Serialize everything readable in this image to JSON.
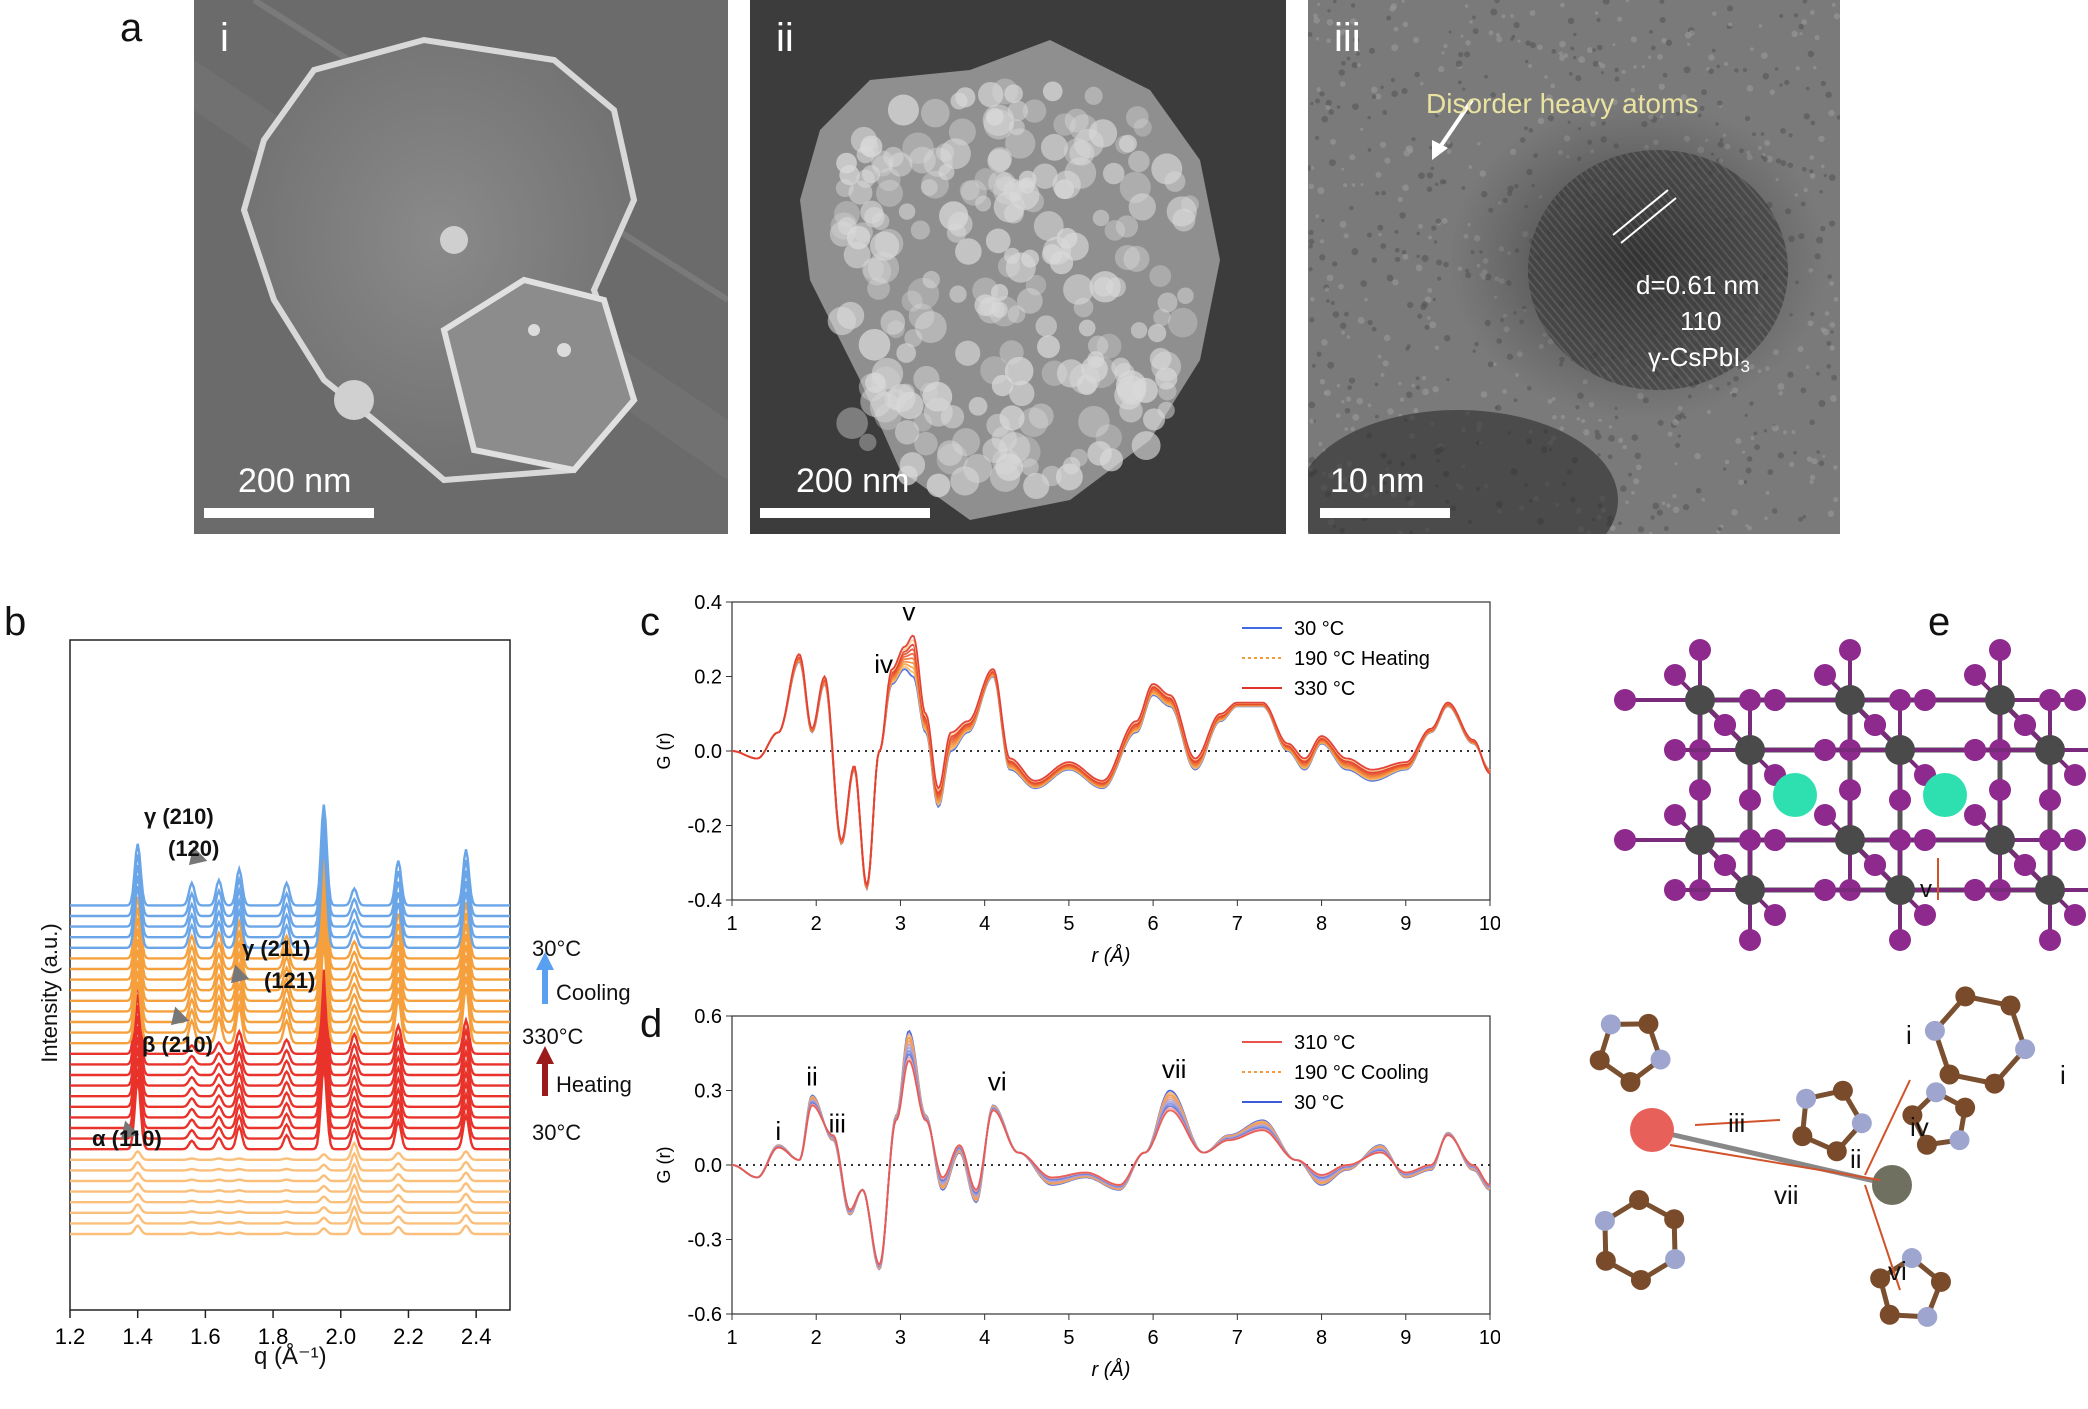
{
  "panels": {
    "a": "a",
    "b": "b",
    "c": "c",
    "d": "d",
    "e": "e"
  },
  "micrographs": [
    {
      "roman": "i",
      "scale": "200 nm"
    },
    {
      "roman": "ii",
      "scale": "200 nm"
    },
    {
      "roman": "iii",
      "scale": "10 nm",
      "annotation": "Disorder heavy atoms",
      "d_spacing": "d=0.61 nm",
      "plane": "110",
      "phase_main": "γ-CsPbI",
      "phase_sub": "3"
    }
  ],
  "panel_b": {
    "xlabel": "q (Å⁻¹)",
    "ylabel": "Intensity (a.u.)",
    "xticks": [
      "1.2",
      "1.4",
      "1.6",
      "1.8",
      "2.0",
      "2.2",
      "2.4"
    ],
    "annotations": [
      {
        "text": "γ (210)"
      },
      {
        "text": "(120)"
      },
      {
        "text": "γ (211)"
      },
      {
        "text": "(121)"
      },
      {
        "text": "β (210)"
      },
      {
        "text": "α (110)"
      }
    ],
    "side_labels": {
      "top_temp": "30°C",
      "cooling": "Cooling",
      "mid_temp": "330°C",
      "heating": "Heating",
      "bottom_temp": "30°C"
    }
  },
  "chart_data": [
    {
      "type": "line",
      "panel": "b",
      "xlabel": "q (Å⁻¹)",
      "ylabel": "Intensity (a.u.)",
      "xlim": [
        1.2,
        2.5
      ],
      "peaks_q": [
        1.4,
        1.56,
        1.64,
        1.7,
        1.84,
        1.95,
        2.04,
        2.17,
        2.37
      ],
      "stack": {
        "heating_low_T": 8,
        "heating_high_T": 10,
        "cooling_mid_T": 9,
        "cooling_low_T": 5
      },
      "colors": {
        "low": "#fbbf7c",
        "mid": "#f5a03d",
        "hot": "#e8322a",
        "cool": "#6aa5e8"
      }
    },
    {
      "type": "line",
      "panel": "c",
      "xlabel": "r (Å)",
      "ylabel": "G (r)",
      "xlim": [
        1,
        10
      ],
      "ylim": [
        -0.4,
        0.4
      ],
      "xticks": [
        "1",
        "2",
        "3",
        "4",
        "5",
        "6",
        "7",
        "8",
        "9",
        "10"
      ],
      "yticks": [
        "-0.4",
        "-0.2",
        "0.0",
        "0.2",
        "0.4"
      ],
      "legend": [
        {
          "name": "30 °C",
          "color": "#4169e1"
        },
        {
          "name": "190 °C  Heating",
          "color": "#f39a3d"
        },
        {
          "name": "330 °C",
          "color": "#e0322a"
        }
      ],
      "labels": [
        "iv",
        "v"
      ],
      "series": [
        {
          "name": "30 °C",
          "r": [
            1.0,
            1.3,
            1.55,
            1.8,
            1.95,
            2.1,
            2.3,
            2.45,
            2.6,
            2.75,
            2.9,
            3.05,
            3.15,
            3.3,
            3.45,
            3.6,
            3.8,
            4.1,
            4.3,
            4.6,
            5.0,
            5.4,
            5.8,
            6.0,
            6.2,
            6.5,
            6.8,
            7.0,
            7.3,
            7.6,
            7.8,
            8.0,
            8.3,
            8.6,
            9.0,
            9.3,
            9.5,
            9.8,
            10.0
          ],
          "g": [
            0,
            -0.02,
            0.05,
            0.24,
            0.05,
            0.18,
            -0.25,
            -0.05,
            -0.37,
            0.0,
            0.18,
            0.22,
            0.2,
            0.05,
            -0.15,
            0.0,
            0.05,
            0.2,
            -0.05,
            -0.1,
            -0.05,
            -0.1,
            0.05,
            0.15,
            0.12,
            -0.05,
            0.08,
            0.12,
            0.12,
            0.0,
            -0.05,
            0.02,
            -0.05,
            -0.08,
            -0.05,
            0.05,
            0.12,
            0.02,
            -0.05
          ]
        },
        {
          "name": "330 °C",
          "r": [
            1.0,
            1.3,
            1.55,
            1.8,
            1.95,
            2.1,
            2.3,
            2.45,
            2.6,
            2.75,
            2.9,
            3.05,
            3.15,
            3.3,
            3.45,
            3.6,
            3.8,
            4.1,
            4.3,
            4.6,
            5.0,
            5.4,
            5.8,
            6.0,
            6.2,
            6.5,
            6.8,
            7.0,
            7.3,
            7.6,
            7.8,
            8.0,
            8.3,
            8.6,
            9.0,
            9.3,
            9.5,
            9.8,
            10.0
          ],
          "g": [
            0,
            -0.02,
            0.05,
            0.26,
            0.06,
            0.2,
            -0.24,
            -0.04,
            -0.36,
            0.0,
            0.22,
            0.28,
            0.31,
            0.1,
            -0.1,
            0.05,
            0.08,
            0.22,
            -0.02,
            -0.08,
            -0.03,
            -0.08,
            0.08,
            0.18,
            0.15,
            -0.02,
            0.1,
            0.13,
            0.13,
            0.02,
            -0.02,
            0.04,
            -0.02,
            -0.05,
            -0.03,
            0.06,
            0.13,
            0.03,
            -0.06
          ]
        }
      ]
    },
    {
      "type": "line",
      "panel": "d",
      "xlabel": "r (Å)",
      "ylabel": "G (r)",
      "xlim": [
        1,
        10
      ],
      "ylim": [
        -0.6,
        0.6
      ],
      "xticks": [
        "1",
        "2",
        "3",
        "4",
        "5",
        "6",
        "7",
        "8",
        "9",
        "10"
      ],
      "yticks": [
        "-0.6",
        "-0.3",
        "0.0",
        "0.3",
        "0.6"
      ],
      "legend": [
        {
          "name": "310 °C",
          "color": "#e8534a"
        },
        {
          "name": "190 °C  Cooling",
          "color": "#f39a3d"
        },
        {
          "name": "30 °C",
          "color": "#3b5bdb"
        }
      ],
      "labels": [
        "i",
        "ii",
        "iii",
        "vi",
        "vii"
      ],
      "series": [
        {
          "name": "30 °C",
          "r": [
            1.0,
            1.3,
            1.55,
            1.8,
            1.95,
            2.2,
            2.4,
            2.55,
            2.75,
            2.95,
            3.1,
            3.3,
            3.5,
            3.7,
            3.9,
            4.1,
            4.4,
            4.8,
            5.2,
            5.6,
            5.9,
            6.2,
            6.6,
            6.9,
            7.3,
            7.7,
            8.0,
            8.3,
            8.7,
            9.0,
            9.3,
            9.5,
            9.8,
            10.0
          ],
          "g": [
            0,
            -0.05,
            0.08,
            0.02,
            0.28,
            0.1,
            -0.2,
            -0.1,
            -0.42,
            0.2,
            0.54,
            0.2,
            -0.1,
            0.05,
            -0.15,
            0.24,
            0.05,
            -0.08,
            -0.05,
            -0.1,
            0.05,
            0.3,
            0.05,
            0.12,
            0.18,
            0.02,
            -0.08,
            -0.02,
            0.08,
            -0.05,
            -0.02,
            0.13,
            -0.02,
            -0.1
          ]
        },
        {
          "name": "310 °C",
          "r": [
            1.0,
            1.3,
            1.55,
            1.8,
            1.95,
            2.2,
            2.4,
            2.55,
            2.75,
            2.95,
            3.1,
            3.3,
            3.5,
            3.7,
            3.9,
            4.1,
            4.4,
            4.8,
            5.2,
            5.6,
            5.9,
            6.2,
            6.6,
            6.9,
            7.3,
            7.7,
            8.0,
            8.3,
            8.7,
            9.0,
            9.3,
            9.5,
            9.8,
            10.0
          ],
          "g": [
            0,
            -0.05,
            0.07,
            0.02,
            0.24,
            0.12,
            -0.18,
            -0.1,
            -0.4,
            0.18,
            0.42,
            0.18,
            -0.05,
            0.08,
            -0.1,
            0.22,
            0.05,
            -0.05,
            -0.03,
            -0.08,
            0.05,
            0.22,
            0.05,
            0.1,
            0.14,
            0.02,
            -0.04,
            0.0,
            0.05,
            -0.03,
            0.0,
            0.12,
            0.0,
            -0.08
          ]
        }
      ]
    }
  ],
  "panel_e": {
    "labels": [
      "v",
      "i",
      "i",
      "iii",
      "ii",
      "iv",
      "vii",
      "vi"
    ]
  }
}
